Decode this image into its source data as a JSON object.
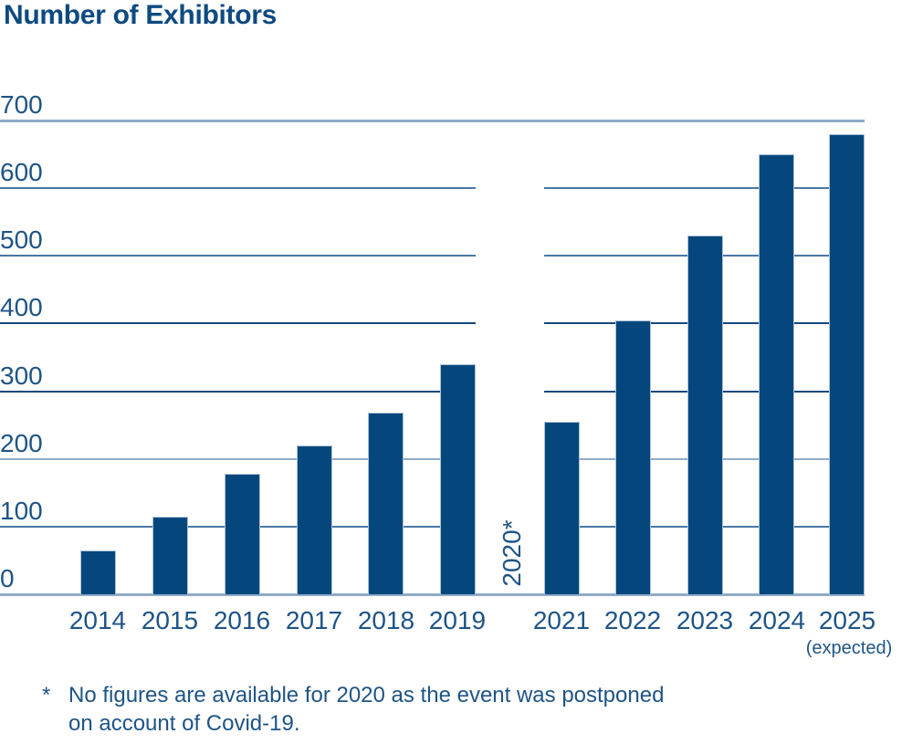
{
  "chart_data": {
    "type": "bar",
    "title": "Number of Exhibitors",
    "categories": [
      "2014",
      "2015",
      "2016",
      "2017",
      "2018",
      "2019",
      "2020*",
      "2021",
      "2022",
      "2023",
      "2024",
      "2025"
    ],
    "values": [
      65,
      115,
      178,
      220,
      268,
      340,
      null,
      255,
      405,
      530,
      650,
      680
    ],
    "missing_slot": {
      "category": "2020*",
      "rendering": "rotated-vertical-label"
    },
    "x_sublabels": {
      "2025": "(expected)"
    },
    "xlabel": "",
    "ylabel": "",
    "ylim": [
      0,
      700
    ],
    "yticks": [
      0,
      100,
      200,
      300,
      400,
      500,
      600,
      700
    ],
    "grid": "horizontal",
    "legend": "none"
  },
  "footnote": {
    "marker": "*",
    "line1": "No figures are available for 2020 as the event was postponed",
    "line2": "on account of Covid-19."
  },
  "colors": {
    "bar": "#05477d",
    "title": "#0d4a80",
    "label": "#1e5486",
    "footnote": "#1e5486",
    "grid_light": "#8fabc8",
    "grid_medium": "#4a77a4",
    "grid_dark": "#16497d"
  }
}
